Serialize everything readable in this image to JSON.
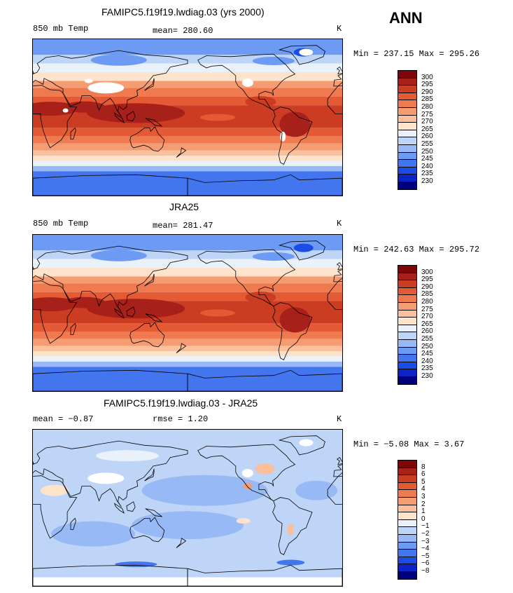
{
  "season": "ANN",
  "colors": {
    "abs": [
      "#00007f",
      "#0c24c6",
      "#1c4ce6",
      "#4376ee",
      "#6d9af2",
      "#97b9f5",
      "#bfd5f8",
      "#e9f1fb",
      "#fde3cc",
      "#fac09c",
      "#f59c72",
      "#ef7a50",
      "#e45a35",
      "#cc3c22",
      "#a8201a",
      "#7f0608"
    ],
    "diff": [
      "#00007f",
      "#0c24c6",
      "#1c4ce6",
      "#4376ee",
      "#6d9af2",
      "#97b9f5",
      "#bfd5f8",
      "#e9f1fb",
      "#fde3cc",
      "#fac09c",
      "#f59c72",
      "#ef7a50",
      "#e45a35",
      "#cc3c22",
      "#a8201a",
      "#7f0608"
    ]
  },
  "chart_data": [
    {
      "type": "heatmap",
      "title": "FAMIPC5.f19f19.lwdiag.03 (yrs 2000)",
      "variable": "850 mb Temp",
      "mean_label": "mean=",
      "mean": "280.60",
      "units": "K",
      "minmax_text": "Min = 237.15 Max = 295.26",
      "min": 237.15,
      "max": 295.26,
      "levels": [
        "300",
        "295",
        "290",
        "285",
        "280",
        "275",
        "270",
        "265",
        "260",
        "255",
        "250",
        "245",
        "240",
        "235",
        "230"
      ]
    },
    {
      "type": "heatmap",
      "title": "JRA25",
      "variable": "850 mb Temp",
      "mean_label": "mean=",
      "mean": "281.47",
      "units": "K",
      "minmax_text": "Min = 242.63 Max = 295.72",
      "min": 242.63,
      "max": 295.72,
      "levels": [
        "300",
        "295",
        "290",
        "285",
        "280",
        "275",
        "270",
        "265",
        "260",
        "255",
        "250",
        "245",
        "240",
        "235",
        "230"
      ]
    },
    {
      "type": "heatmap",
      "title": "FAMIPC5.f19f19.lwdiag.03 - JRA25",
      "mean_text": "mean =   −0.87",
      "rmse_text": "rmse =    1.20",
      "units": "K",
      "minmax_text": "Min =  −5.08 Max =   3.67",
      "min": -5.08,
      "max": 3.67,
      "levels": [
        "8",
        "6",
        "5",
        "4",
        "3",
        "2",
        "1",
        "0",
        "−1",
        "−2",
        "−3",
        "−4",
        "−5",
        "−6",
        "−8"
      ]
    }
  ]
}
